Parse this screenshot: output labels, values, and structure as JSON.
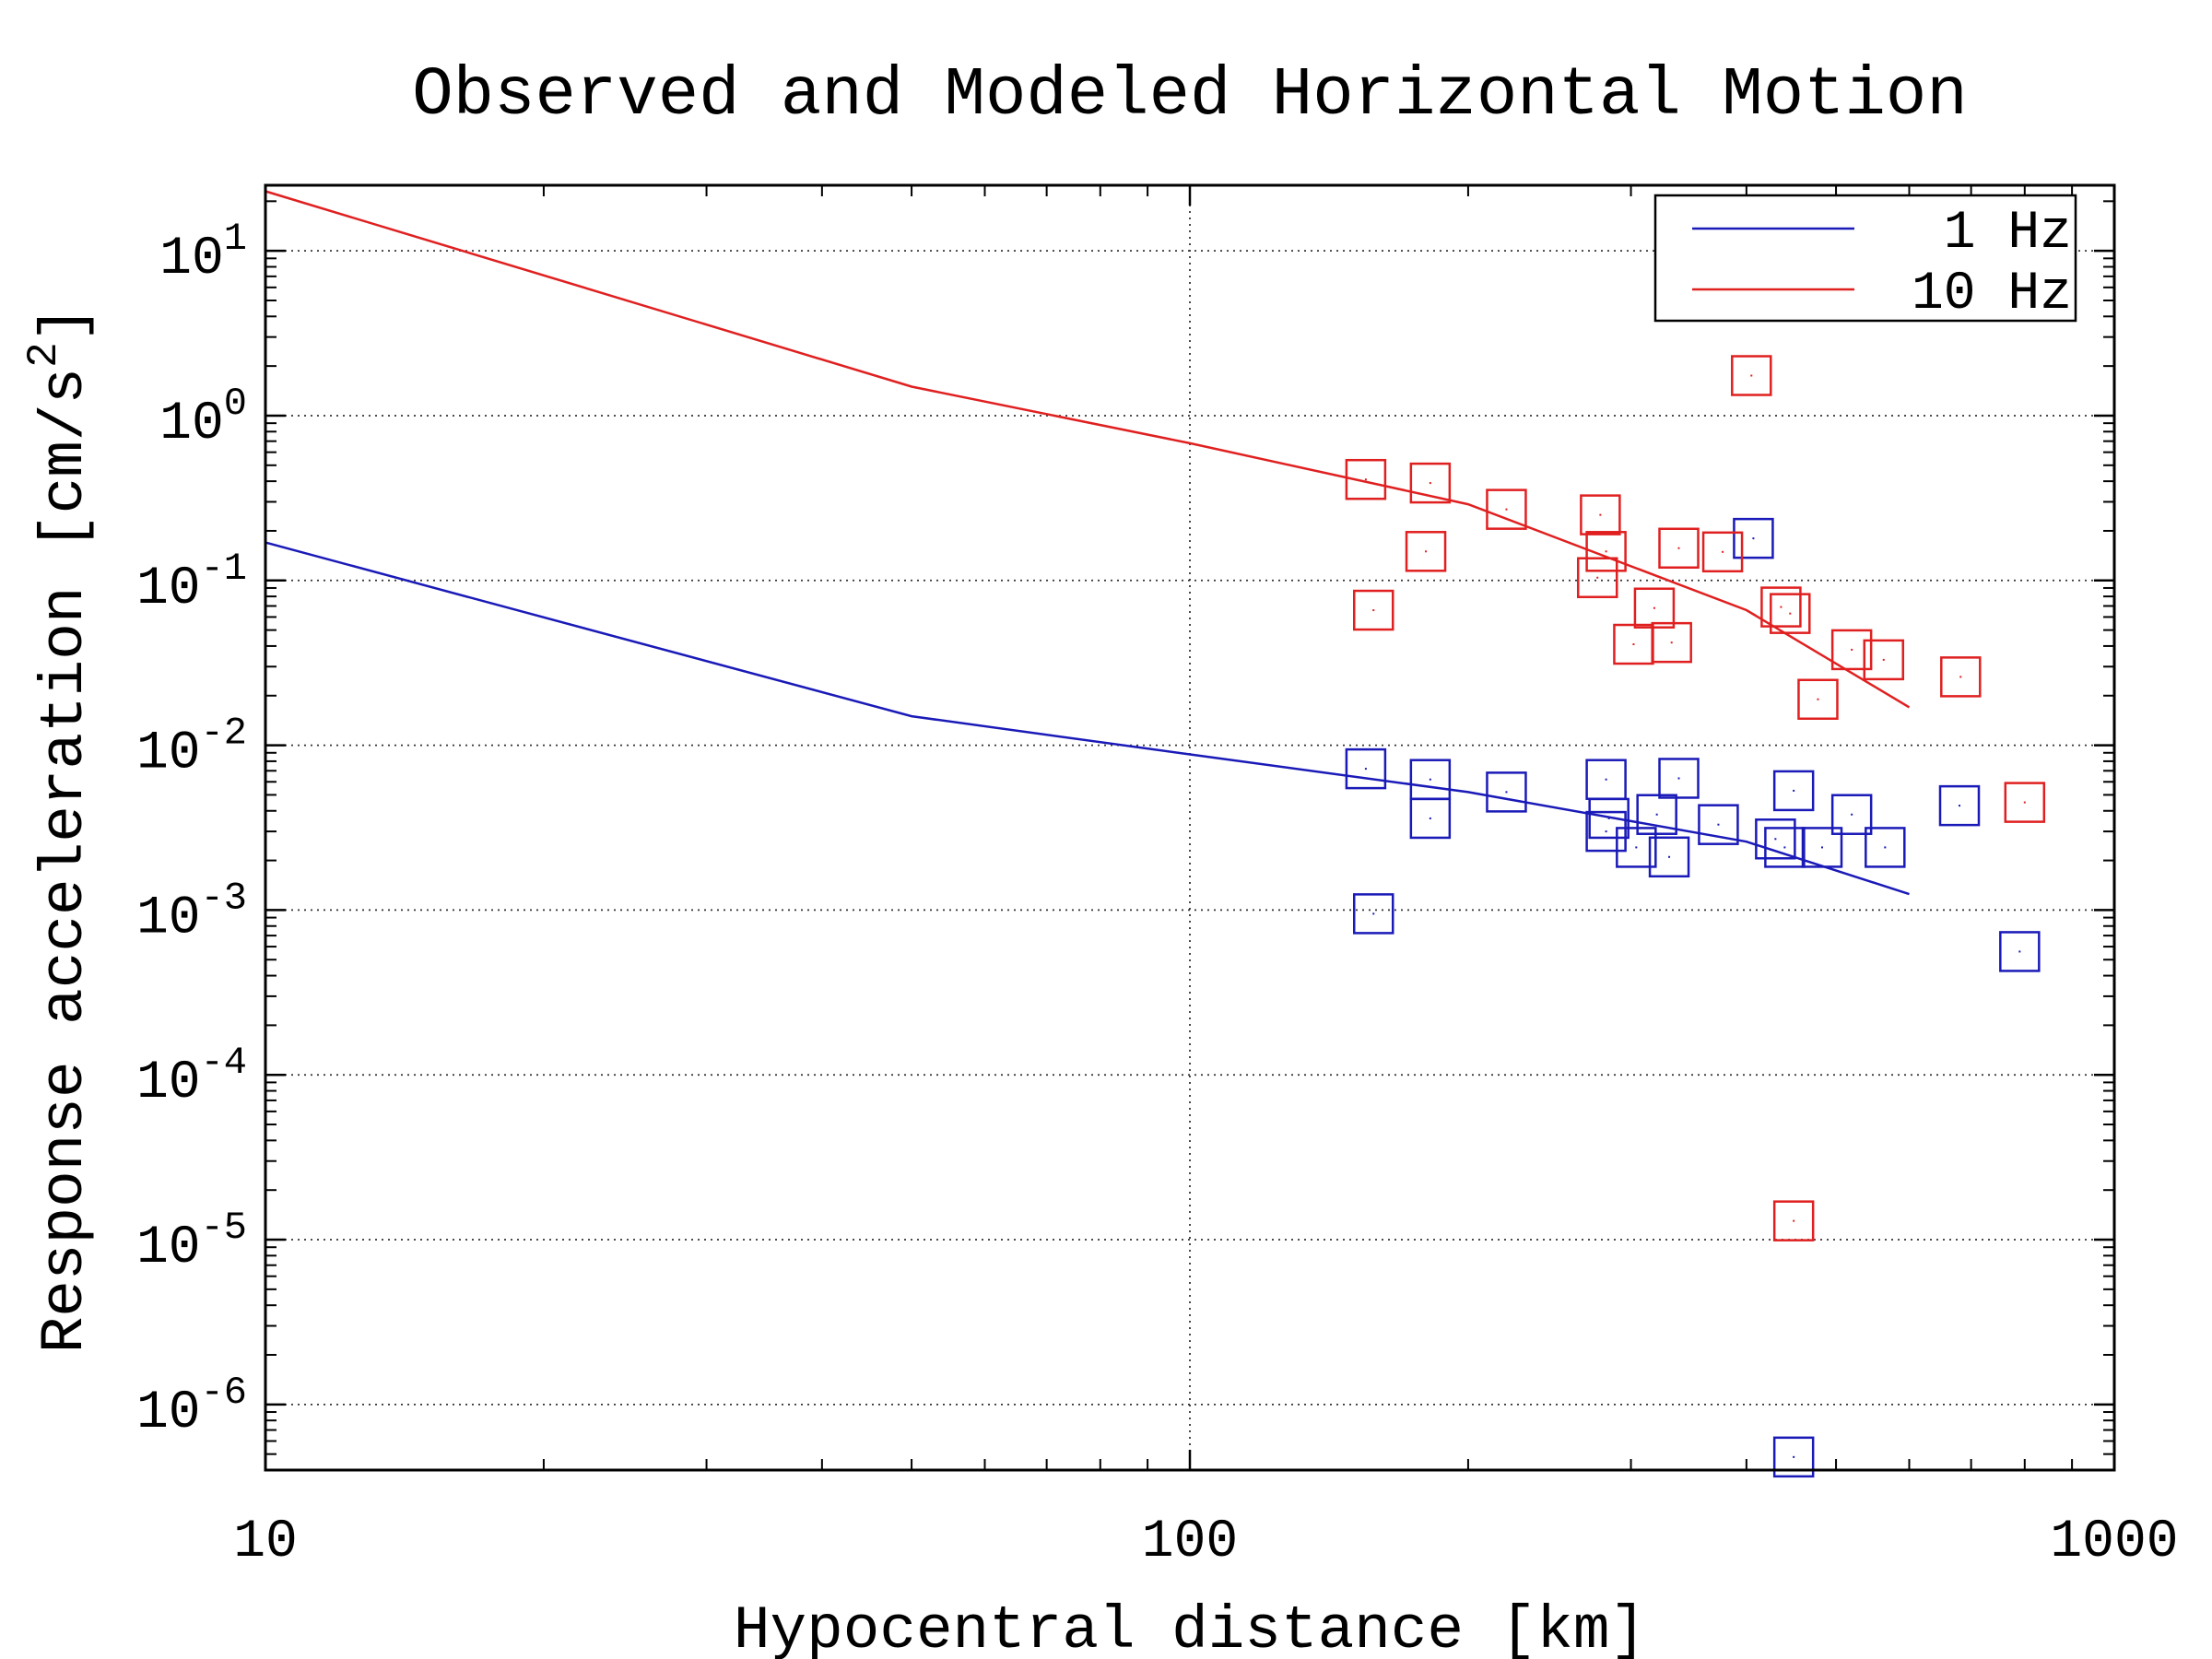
{
  "chart_data": {
    "type": "scatter",
    "title": "Observed and Modeled Horizontal Motion",
    "xlabel": "Hypocentral distance [km]",
    "ylabel": "Response acceleration [cm/s^2]",
    "ylabel_parts": {
      "prefix": "Response acceleration [cm/s",
      "sup": "2",
      "suffix": "]"
    },
    "x_scale": "log",
    "y_scale": "log",
    "xlim": [
      10,
      1000
    ],
    "ylim": [
      4e-07,
      25
    ],
    "x_ticks": [
      {
        "value": 10,
        "label": "10"
      },
      {
        "value": 100,
        "label": "100"
      },
      {
        "value": 1000,
        "label": "1000"
      }
    ],
    "y_ticks": [
      {
        "value": 10,
        "base": "10",
        "exp": "1"
      },
      {
        "value": 1,
        "base": "10",
        "exp": "0"
      },
      {
        "value": 0.1,
        "base": "10",
        "exp": "-1"
      },
      {
        "value": 0.01,
        "base": "10",
        "exp": "-2"
      },
      {
        "value": 0.001,
        "base": "10",
        "exp": "-3"
      },
      {
        "value": 0.0001,
        "base": "10",
        "exp": "-4"
      },
      {
        "value": 1e-05,
        "base": "10",
        "exp": "-5"
      },
      {
        "value": 1e-06,
        "base": "10",
        "exp": "-6"
      }
    ],
    "grid": true,
    "legend_position": "top-right",
    "colors": {
      "1hz": "#1a1ab8",
      "10hz": "#e02020"
    },
    "series": [
      {
        "name": "1 Hz",
        "color_key": "1hz",
        "model_line": {
          "x": [
            10,
            50,
            100,
            200,
            400,
            600
          ],
          "y": [
            0.17,
            0.015,
            0.0088,
            0.0052,
            0.0026,
            0.00125
          ]
        },
        "observed": [
          {
            "x": 155,
            "y": 0.0072
          },
          {
            "x": 158,
            "y": 0.00095
          },
          {
            "x": 182,
            "y": 0.0062
          },
          {
            "x": 182,
            "y": 0.0036
          },
          {
            "x": 220,
            "y": 0.0052
          },
          {
            "x": 282,
            "y": 0.0062
          },
          {
            "x": 284,
            "y": 0.0036
          },
          {
            "x": 282,
            "y": 0.003
          },
          {
            "x": 304,
            "y": 0.0024
          },
          {
            "x": 320,
            "y": 0.0038
          },
          {
            "x": 330,
            "y": 0.0021
          },
          {
            "x": 338,
            "y": 0.0063
          },
          {
            "x": 373,
            "y": 0.0033
          },
          {
            "x": 407,
            "y": 0.18
          },
          {
            "x": 430,
            "y": 0.0027
          },
          {
            "x": 440,
            "y": 0.0024
          },
          {
            "x": 450,
            "y": 0.0053
          },
          {
            "x": 450,
            "y": 4.8e-07
          },
          {
            "x": 483,
            "y": 0.0024
          },
          {
            "x": 520,
            "y": 0.0038
          },
          {
            "x": 565,
            "y": 0.0024
          },
          {
            "x": 680,
            "y": 0.0043
          },
          {
            "x": 790,
            "y": 0.00056
          }
        ]
      },
      {
        "name": "10 Hz",
        "color_key": "10hz",
        "model_line": {
          "x": [
            10,
            50,
            100,
            200,
            400,
            600
          ],
          "y": [
            23,
            1.5,
            0.68,
            0.29,
            0.066,
            0.017
          ]
        },
        "observed": [
          {
            "x": 155,
            "y": 0.41
          },
          {
            "x": 158,
            "y": 0.066
          },
          {
            "x": 182,
            "y": 0.39
          },
          {
            "x": 180,
            "y": 0.15
          },
          {
            "x": 220,
            "y": 0.27
          },
          {
            "x": 278,
            "y": 0.25
          },
          {
            "x": 282,
            "y": 0.15
          },
          {
            "x": 276,
            "y": 0.104
          },
          {
            "x": 302,
            "y": 0.041
          },
          {
            "x": 318,
            "y": 0.068
          },
          {
            "x": 332,
            "y": 0.042
          },
          {
            "x": 338,
            "y": 0.157
          },
          {
            "x": 377,
            "y": 0.149
          },
          {
            "x": 405,
            "y": 1.75
          },
          {
            "x": 436,
            "y": 0.069
          },
          {
            "x": 446,
            "y": 0.063
          },
          {
            "x": 450,
            "y": 1.3e-05
          },
          {
            "x": 478,
            "y": 0.019
          },
          {
            "x": 520,
            "y": 0.038
          },
          {
            "x": 563,
            "y": 0.033
          },
          {
            "x": 682,
            "y": 0.026
          },
          {
            "x": 800,
            "y": 0.0045
          }
        ]
      }
    ]
  }
}
